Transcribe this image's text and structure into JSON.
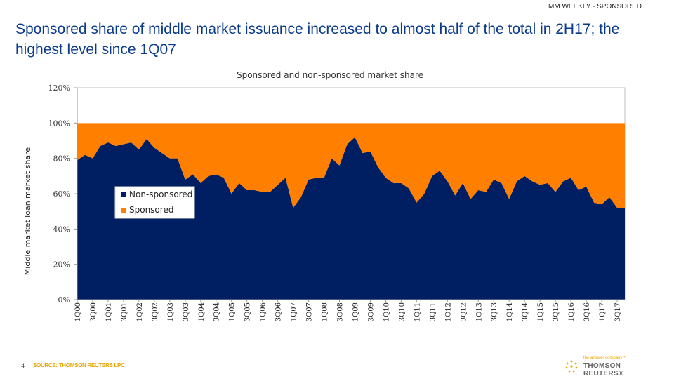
{
  "header": {
    "tag": "MM WEEKLY - SPONSORED",
    "headline": "Sponsored share of middle market issuance increased to almost half of the total in 2H17; the highest level since 1Q07"
  },
  "footer": {
    "page_number": "4",
    "source": "SOURCE: THOMSON REUTERS LPC",
    "logo_tagline": "the answer company™",
    "logo_name": "THOMSON REUTERS®"
  },
  "chart_data": {
    "type": "area",
    "stacked": true,
    "title": "Sponsored and non-sponsored market share",
    "ylabel": "Middle market loan market share",
    "xlabel": "",
    "ylim": [
      0,
      120
    ],
    "yticks": [
      0,
      20,
      40,
      60,
      80,
      100,
      120
    ],
    "ytick_format": "percent",
    "legend_position": "center-left",
    "grid": false,
    "tick_labels": [
      "1Q00",
      "3Q00",
      "1Q01",
      "3Q01",
      "1Q02",
      "3Q02",
      "1Q03",
      "3Q03",
      "1Q04",
      "3Q04",
      "1Q05",
      "3Q05",
      "1Q06",
      "3Q06",
      "1Q07",
      "3Q07",
      "1Q08",
      "3Q08",
      "1Q09",
      "3Q09",
      "1Q10",
      "3Q10",
      "1Q11",
      "3Q11",
      "1Q12",
      "3Q12",
      "1Q13",
      "3Q13",
      "1Q14",
      "3Q14",
      "1Q15",
      "3Q15",
      "1Q16",
      "3Q16",
      "1Q17",
      "3Q17"
    ],
    "x": [
      "1Q00",
      "2Q00",
      "3Q00",
      "4Q00",
      "1Q01",
      "2Q01",
      "3Q01",
      "4Q01",
      "1Q02",
      "2Q02",
      "3Q02",
      "4Q02",
      "1Q03",
      "2Q03",
      "3Q03",
      "4Q03",
      "1Q04",
      "2Q04",
      "3Q04",
      "4Q04",
      "1Q05",
      "2Q05",
      "3Q05",
      "4Q05",
      "1Q06",
      "2Q06",
      "3Q06",
      "4Q06",
      "1Q07",
      "2Q07",
      "3Q07",
      "4Q07",
      "1Q08",
      "2Q08",
      "3Q08",
      "4Q08",
      "1Q09",
      "2Q09",
      "3Q09",
      "4Q09",
      "1Q10",
      "2Q10",
      "3Q10",
      "4Q10",
      "1Q11",
      "2Q11",
      "3Q11",
      "4Q11",
      "1Q12",
      "2Q12",
      "3Q12",
      "4Q12",
      "1Q13",
      "2Q13",
      "3Q13",
      "4Q13",
      "1Q14",
      "2Q14",
      "3Q14",
      "4Q14",
      "1Q15",
      "2Q15",
      "3Q15",
      "4Q15",
      "1Q16",
      "2Q16",
      "3Q16",
      "4Q16",
      "1Q17",
      "2Q17",
      "3Q17",
      "4Q17"
    ],
    "series": [
      {
        "name": "Non-sponsored",
        "color": "#001e62",
        "values": [
          79,
          82,
          80,
          87,
          89,
          87,
          88,
          89,
          85,
          91,
          86,
          83,
          80,
          80,
          68,
          71,
          66,
          70,
          71,
          69,
          60,
          66,
          62,
          62,
          61,
          61,
          65,
          69,
          52,
          58,
          68,
          69,
          69,
          80,
          76,
          88,
          92,
          83,
          84,
          75,
          69,
          66,
          66,
          63,
          55,
          60,
          70,
          73,
          67,
          59,
          66,
          57,
          62,
          61,
          68,
          66,
          57,
          67,
          70,
          67,
          65,
          66,
          61,
          67,
          69,
          62,
          64,
          55,
          54,
          58,
          52,
          52
        ]
      },
      {
        "name": "Sponsored",
        "color": "#ff8000",
        "values": [
          21,
          18,
          20,
          13,
          11,
          13,
          12,
          11,
          15,
          9,
          14,
          17,
          20,
          20,
          32,
          29,
          34,
          30,
          29,
          31,
          40,
          34,
          38,
          38,
          39,
          39,
          35,
          31,
          48,
          42,
          32,
          31,
          31,
          20,
          24,
          12,
          8,
          17,
          16,
          25,
          31,
          34,
          34,
          37,
          45,
          40,
          30,
          27,
          33,
          41,
          34,
          43,
          38,
          39,
          32,
          34,
          43,
          33,
          30,
          33,
          35,
          34,
          39,
          33,
          31,
          38,
          36,
          45,
          46,
          42,
          48,
          48
        ]
      }
    ]
  }
}
